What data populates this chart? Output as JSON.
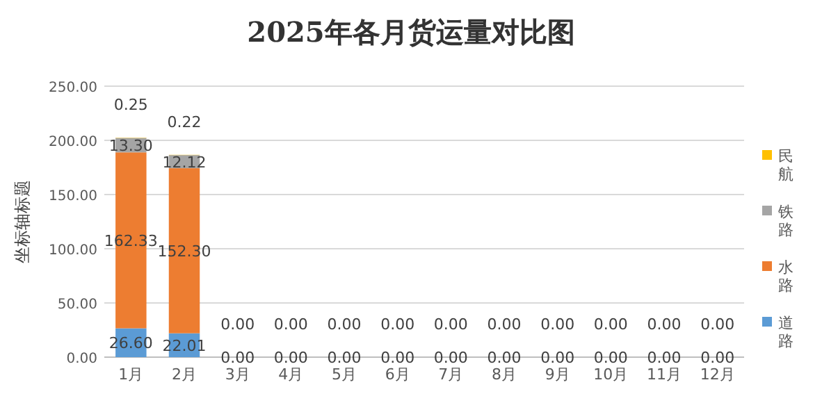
{
  "chart_data": {
    "type": "bar",
    "title": "2025年各月货运量对比图",
    "ylabel": "坐标轴标题",
    "categories": [
      "1月",
      "2月",
      "3月",
      "4月",
      "5月",
      "6月",
      "7月",
      "8月",
      "9月",
      "10月",
      "11月",
      "12月"
    ],
    "stacked": true,
    "ylim": [
      0,
      250
    ],
    "yticks": [
      {
        "value": 0,
        "label": "0.00"
      },
      {
        "value": 50,
        "label": "50.00"
      },
      {
        "value": 100,
        "label": "100.00"
      },
      {
        "value": 150,
        "label": "150.00"
      },
      {
        "value": 200,
        "label": "200.00"
      },
      {
        "value": 250,
        "label": "250.00"
      }
    ],
    "grid": "y",
    "legend": "right",
    "series": [
      {
        "name": "道路",
        "color": "#5b9bd5",
        "values": [
          26.6,
          22.01,
          0,
          0,
          0,
          0,
          0,
          0,
          0,
          0,
          0,
          0
        ],
        "value_labels": [
          "26.60",
          "22.01",
          "0.00",
          "0.00",
          "0.00",
          "0.00",
          "0.00",
          "0.00",
          "0.00",
          "0.00",
          "0.00",
          "0.00"
        ]
      },
      {
        "name": "水路",
        "color": "#ed7d31",
        "values": [
          162.33,
          152.3,
          0,
          0,
          0,
          0,
          0,
          0,
          0,
          0,
          0,
          0
        ],
        "value_labels": [
          "162.33",
          "152.30",
          null,
          null,
          null,
          null,
          null,
          null,
          null,
          null,
          null,
          null
        ]
      },
      {
        "name": "铁路",
        "color": "#a5a5a5",
        "values": [
          13.3,
          12.12,
          0,
          0,
          0,
          0,
          0,
          0,
          0,
          0,
          0,
          0
        ],
        "value_labels": [
          "13.30",
          "12.12",
          null,
          null,
          null,
          null,
          null,
          null,
          null,
          null,
          null,
          null
        ]
      },
      {
        "name": "民航",
        "color": "#ffc000",
        "values": [
          0.25,
          0.22,
          0,
          0,
          0,
          0,
          0,
          0,
          0,
          0,
          0,
          0
        ],
        "value_labels": [
          "0.25",
          "0.22",
          "0.00",
          "0.00",
          "0.00",
          "0.00",
          "0.00",
          "0.00",
          "0.00",
          "0.00",
          "0.00",
          "0.00"
        ]
      }
    ]
  }
}
